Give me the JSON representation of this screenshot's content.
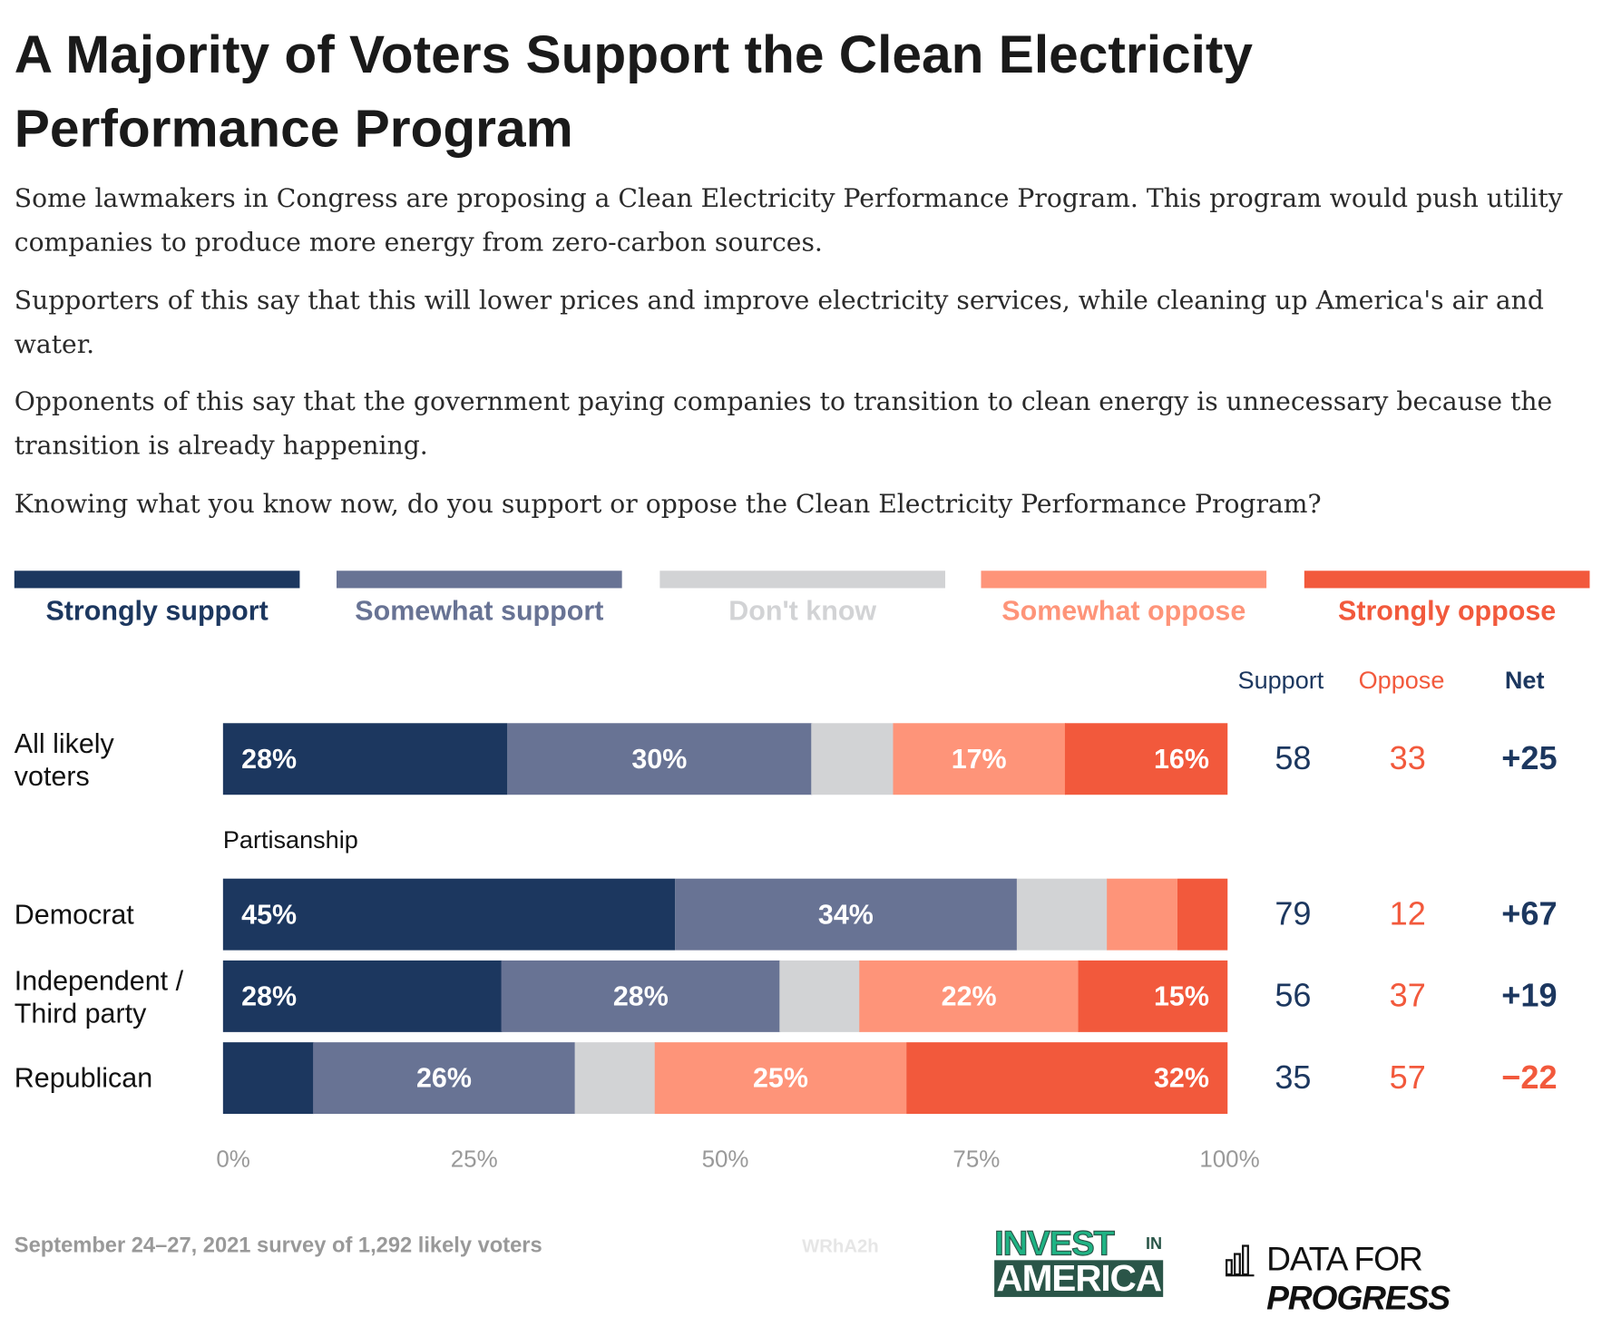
{
  "title": "A Majority of Voters Support the Clean Electricity Performance Program",
  "paragraphs": [
    "Some lawmakers in Congress are proposing a Clean Electricity Performance Program. This program would push utility companies to produce more energy from zero-carbon sources.",
    "Supporters of this say that this will lower prices and improve electricity services, while cleaning up America's air and water.",
    "Opponents of this say that the government paying companies to transition to clean energy is unnecessary because the transition is already happening.",
    "Knowing what you know now, do you support or oppose the Clean Electricity Performance Program?"
  ],
  "colors": {
    "strongly_support": "#1c375f",
    "somewhat_support": "#687394",
    "dont_know": "#d2d3d5",
    "somewhat_oppose": "#fe9479",
    "strongly_oppose": "#f2593c"
  },
  "chart_data": {
    "type": "bar",
    "orientation": "horizontal-stacked",
    "legend": [
      "Strongly support",
      "Somewhat support",
      "Don't know",
      "Somewhat oppose",
      "Strongly oppose"
    ],
    "legend_placement": "top",
    "group_label": "Partisanship",
    "x_ticks": [
      "0%",
      "25%",
      "50%",
      "75%",
      "100%"
    ],
    "xlim": [
      0,
      100
    ],
    "column_headers": {
      "support": "Support",
      "oppose": "Oppose",
      "net": "Net"
    },
    "rows": [
      {
        "category": "All likely voters",
        "values": [
          28,
          30,
          8,
          17,
          16
        ],
        "labels": [
          "28%",
          "30%",
          "",
          "17%",
          "16%"
        ],
        "support": "58",
        "oppose": "33",
        "net": "+25"
      },
      {
        "category": "Democrat",
        "values": [
          45,
          34,
          9,
          7,
          5
        ],
        "labels": [
          "45%",
          "34%",
          "",
          "",
          ""
        ],
        "support": "79",
        "oppose": "12",
        "net": "+67"
      },
      {
        "category": "Independent / Third party",
        "values": [
          28,
          28,
          8,
          22,
          15
        ],
        "labels": [
          "28%",
          "28%",
          "",
          "22%",
          "15%"
        ],
        "support": "56",
        "oppose": "37",
        "net": "+19"
      },
      {
        "category": "Republican",
        "values": [
          9,
          26,
          8,
          25,
          32
        ],
        "labels": [
          "",
          "26%",
          "",
          "25%",
          "32%"
        ],
        "support": "35",
        "oppose": "57",
        "net": "−22"
      }
    ]
  },
  "footer": {
    "note": "September 24–27, 2021 survey of 1,292 likely voters",
    "code": "WRhA2h",
    "logo1_line1": "INVEST",
    "logo1_in": "IN",
    "logo1_line2": "AMERICA",
    "logo2_a": "DATA FOR ",
    "logo2_b": "PROGRESS"
  }
}
